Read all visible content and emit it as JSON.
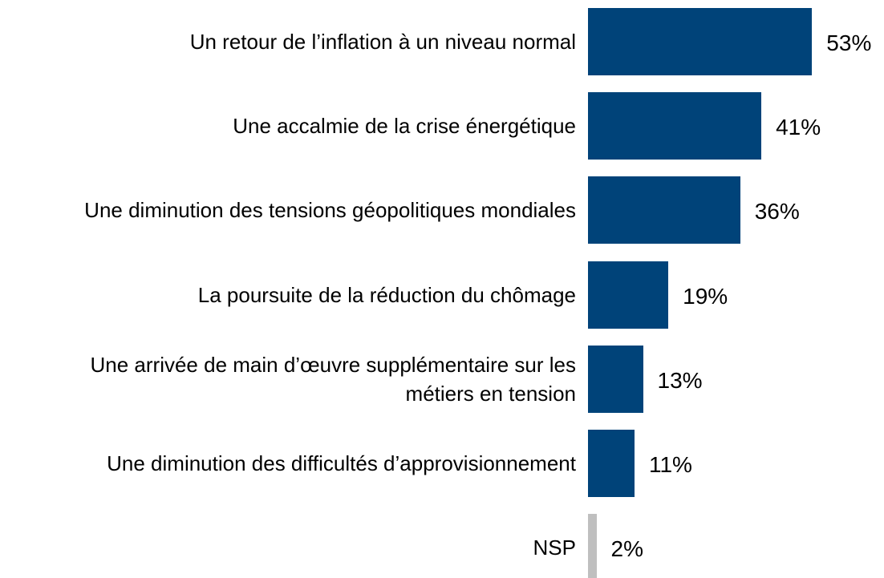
{
  "chart_data": {
    "type": "bar",
    "orientation": "horizontal",
    "categories": [
      "Un retour de l’inflation à un niveau normal",
      "Une accalmie de la crise énergétique",
      "Une diminution des tensions géopolitiques mondiales",
      "La poursuite de la réduction du chômage",
      "Une arrivée de main d’œuvre supplémentaire sur les\nmétiers en tension",
      "Une diminution des difficultés d’approvisionnement",
      "NSP"
    ],
    "values": [
      53,
      41,
      36,
      19,
      13,
      11,
      2
    ],
    "value_labels": [
      "53%",
      "41%",
      "36%",
      "19%",
      "13%",
      "11%",
      "2%"
    ],
    "colors": [
      "#004379",
      "#004379",
      "#004379",
      "#004379",
      "#004379",
      "#004379",
      "#bfbfbf"
    ],
    "xlim": [
      0,
      60
    ]
  }
}
